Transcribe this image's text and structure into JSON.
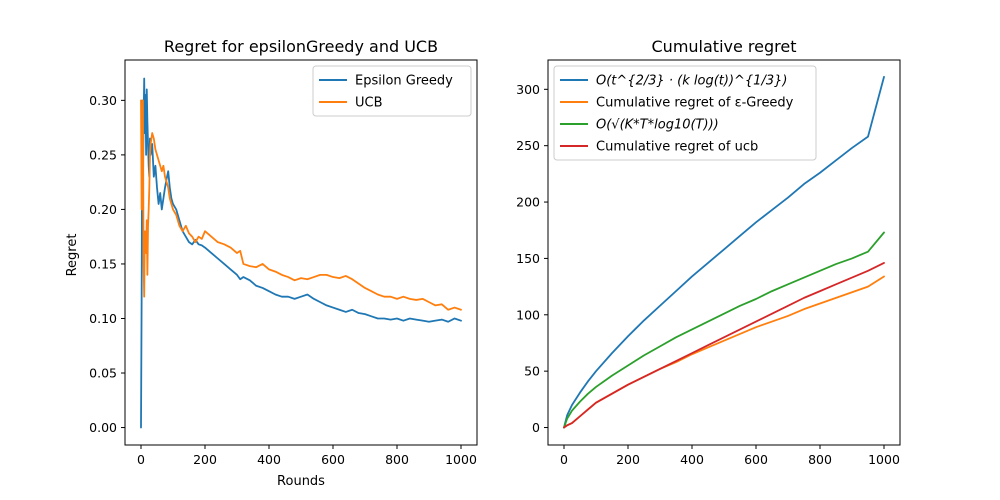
{
  "chart_data": [
    {
      "type": "line",
      "title": "Regret for epsilonGreedy and UCB",
      "xlabel": "Rounds",
      "ylabel": "Regret",
      "xlim": [
        -50,
        1050
      ],
      "ylim": [
        -0.016,
        0.337
      ],
      "xticks": [
        0,
        200,
        400,
        600,
        800,
        1000
      ],
      "yticks": [
        0.0,
        0.05,
        0.1,
        0.15,
        0.2,
        0.25,
        0.3
      ],
      "ytick_labels": [
        "0.00",
        "0.05",
        "0.10",
        "0.15",
        "0.20",
        "0.25",
        "0.30"
      ],
      "legend": "top-right",
      "grid": false,
      "series": [
        {
          "name": "Epsilon Greedy",
          "color": "#1f77b4",
          "x": [
            0,
            2,
            4,
            6,
            8,
            10,
            12,
            14,
            16,
            18,
            20,
            22,
            24,
            26,
            28,
            30,
            35,
            40,
            45,
            50,
            55,
            60,
            65,
            70,
            75,
            80,
            85,
            90,
            95,
            100,
            110,
            120,
            130,
            140,
            150,
            160,
            170,
            180,
            190,
            200,
            220,
            240,
            260,
            280,
            300,
            310,
            320,
            340,
            360,
            380,
            400,
            420,
            440,
            460,
            480,
            500,
            520,
            540,
            560,
            580,
            600,
            620,
            640,
            660,
            680,
            700,
            720,
            740,
            760,
            780,
            800,
            820,
            840,
            860,
            880,
            900,
            920,
            940,
            960,
            980,
            1000
          ],
          "y": [
            0.0,
            0.12,
            0.3,
            0.22,
            0.28,
            0.32,
            0.27,
            0.305,
            0.25,
            0.31,
            0.28,
            0.26,
            0.24,
            0.23,
            0.265,
            0.25,
            0.26,
            0.23,
            0.24,
            0.22,
            0.205,
            0.215,
            0.2,
            0.21,
            0.22,
            0.228,
            0.235,
            0.22,
            0.21,
            0.205,
            0.2,
            0.19,
            0.18,
            0.175,
            0.17,
            0.168,
            0.172,
            0.168,
            0.167,
            0.165,
            0.16,
            0.155,
            0.15,
            0.145,
            0.14,
            0.136,
            0.138,
            0.135,
            0.13,
            0.128,
            0.125,
            0.122,
            0.12,
            0.12,
            0.118,
            0.12,
            0.122,
            0.118,
            0.115,
            0.112,
            0.11,
            0.108,
            0.106,
            0.108,
            0.105,
            0.104,
            0.102,
            0.1,
            0.1,
            0.099,
            0.1,
            0.098,
            0.1,
            0.099,
            0.098,
            0.097,
            0.098,
            0.099,
            0.097,
            0.1,
            0.098
          ]
        },
        {
          "name": "UCB",
          "color": "#ff7f0e",
          "x": [
            0,
            2,
            4,
            6,
            8,
            10,
            12,
            14,
            16,
            18,
            20,
            22,
            24,
            26,
            28,
            30,
            35,
            40,
            45,
            50,
            55,
            60,
            65,
            70,
            75,
            80,
            85,
            90,
            95,
            100,
            110,
            120,
            130,
            140,
            150,
            160,
            170,
            180,
            190,
            200,
            220,
            240,
            260,
            280,
            300,
            310,
            320,
            340,
            360,
            380,
            400,
            420,
            440,
            460,
            480,
            500,
            520,
            540,
            560,
            580,
            600,
            620,
            640,
            660,
            680,
            700,
            720,
            740,
            760,
            780,
            800,
            820,
            840,
            860,
            880,
            900,
            920,
            940,
            960,
            980,
            1000
          ],
          "y": [
            0.3,
            0.2,
            0.25,
            0.3,
            0.15,
            0.12,
            0.18,
            0.17,
            0.16,
            0.19,
            0.14,
            0.185,
            0.2,
            0.22,
            0.25,
            0.26,
            0.27,
            0.265,
            0.255,
            0.25,
            0.245,
            0.24,
            0.235,
            0.24,
            0.23,
            0.225,
            0.22,
            0.21,
            0.205,
            0.2,
            0.195,
            0.185,
            0.18,
            0.185,
            0.178,
            0.175,
            0.17,
            0.175,
            0.173,
            0.18,
            0.175,
            0.17,
            0.168,
            0.165,
            0.16,
            0.162,
            0.15,
            0.148,
            0.147,
            0.15,
            0.145,
            0.143,
            0.14,
            0.138,
            0.135,
            0.137,
            0.136,
            0.138,
            0.14,
            0.14,
            0.138,
            0.137,
            0.139,
            0.136,
            0.132,
            0.128,
            0.125,
            0.122,
            0.12,
            0.12,
            0.118,
            0.12,
            0.118,
            0.117,
            0.118,
            0.115,
            0.112,
            0.113,
            0.108,
            0.11,
            0.108
          ]
        }
      ]
    },
    {
      "type": "line",
      "title": "Cumulative regret",
      "xlabel": "",
      "ylabel": "",
      "xlim": [
        -50,
        1050
      ],
      "ylim": [
        -15.5,
        326
      ],
      "xticks": [
        0,
        200,
        400,
        600,
        800,
        1000
      ],
      "yticks": [
        0,
        50,
        100,
        150,
        200,
        250,
        300
      ],
      "legend": "top-left",
      "grid": false,
      "series": [
        {
          "name": "O(t^{2/3} · (k log(t))^{1/3})",
          "color": "#1f77b4",
          "x": [
            0,
            10,
            25,
            50,
            75,
            100,
            150,
            200,
            250,
            300,
            350,
            400,
            450,
            500,
            550,
            600,
            650,
            700,
            750,
            800,
            850,
            900,
            950,
            1000
          ],
          "y": [
            0,
            11,
            20,
            31,
            41,
            50,
            66,
            81,
            95,
            108,
            121,
            134,
            146,
            158,
            170,
            182,
            193,
            204,
            216,
            226,
            237,
            248,
            258,
            311
          ]
        },
        {
          "name": "Cumulative regret of ε-Greedy",
          "color": "#ff7f0e",
          "x": [
            0,
            10,
            25,
            50,
            75,
            100,
            150,
            200,
            250,
            300,
            350,
            400,
            450,
            500,
            550,
            600,
            650,
            700,
            750,
            800,
            850,
            900,
            950,
            1000
          ],
          "y": [
            0,
            2,
            4,
            10,
            16,
            22,
            30,
            38,
            45,
            52,
            58,
            65,
            71,
            77,
            83,
            89,
            94,
            99,
            105,
            110,
            115,
            120,
            125,
            134
          ]
        },
        {
          "name": "O(√(K*T*log10(T)))",
          "color": "#2ca02c",
          "x": [
            0,
            10,
            25,
            50,
            75,
            100,
            150,
            200,
            250,
            300,
            350,
            400,
            450,
            500,
            550,
            600,
            650,
            700,
            750,
            800,
            850,
            900,
            950,
            1000
          ],
          "y": [
            0,
            8,
            15,
            23,
            30,
            36,
            46,
            55,
            64,
            72,
            80,
            87,
            94,
            101,
            108,
            114,
            121,
            127,
            133,
            139,
            145,
            150,
            156,
            173
          ]
        },
        {
          "name": "Cumulative regret of ucb",
          "color": "#d62728",
          "x": [
            0,
            10,
            25,
            50,
            75,
            100,
            150,
            200,
            250,
            300,
            350,
            400,
            450,
            500,
            550,
            600,
            650,
            700,
            750,
            800,
            850,
            900,
            950,
            1000
          ],
          "y": [
            0,
            2,
            4,
            10,
            16,
            22,
            30,
            38,
            45,
            52,
            59,
            66,
            73,
            80,
            87,
            94,
            101,
            108,
            115,
            121,
            127,
            133,
            139,
            146
          ]
        }
      ]
    }
  ]
}
